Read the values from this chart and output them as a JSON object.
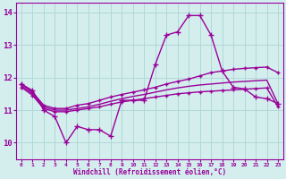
{
  "x": [
    0,
    1,
    2,
    3,
    4,
    5,
    6,
    7,
    8,
    9,
    10,
    11,
    12,
    13,
    14,
    15,
    16,
    17,
    18,
    19,
    20,
    21,
    22,
    23
  ],
  "windchill": [
    11.8,
    11.6,
    11.0,
    10.8,
    10.0,
    10.5,
    10.4,
    10.4,
    10.2,
    11.3,
    11.3,
    11.3,
    12.4,
    13.3,
    13.4,
    13.9,
    13.9,
    13.3,
    12.2,
    11.7,
    11.65,
    11.4,
    11.35,
    11.2
  ],
  "line_upper": [
    11.8,
    11.55,
    11.15,
    11.05,
    11.05,
    11.15,
    11.2,
    11.3,
    11.4,
    11.48,
    11.55,
    11.62,
    11.7,
    11.8,
    11.88,
    11.95,
    12.05,
    12.15,
    12.2,
    12.25,
    12.28,
    12.3,
    12.32,
    12.15
  ],
  "line_mid": [
    11.75,
    11.5,
    11.1,
    11.0,
    11.0,
    11.05,
    11.1,
    11.18,
    11.27,
    11.35,
    11.42,
    11.48,
    11.55,
    11.62,
    11.68,
    11.73,
    11.77,
    11.8,
    11.83,
    11.86,
    11.88,
    11.9,
    11.92,
    11.2
  ],
  "line_lower": [
    11.7,
    11.45,
    11.05,
    10.95,
    10.95,
    11.0,
    11.05,
    11.1,
    11.18,
    11.25,
    11.3,
    11.35,
    11.4,
    11.45,
    11.5,
    11.53,
    11.56,
    11.58,
    11.6,
    11.62,
    11.64,
    11.66,
    11.68,
    11.1
  ],
  "bg_color": "#d4eeee",
  "line_color": "#990099",
  "grid_color": "#b0d8d8",
  "xlabel": "Windchill (Refroidissement éolien,°C)",
  "ylim": [
    9.5,
    14.3
  ],
  "xlim": [
    -0.5,
    23.5
  ],
  "yticks": [
    10,
    11,
    12,
    13,
    14
  ],
  "xticks": [
    0,
    1,
    2,
    3,
    4,
    5,
    6,
    7,
    8,
    9,
    10,
    11,
    12,
    13,
    14,
    15,
    16,
    17,
    18,
    19,
    20,
    21,
    22,
    23
  ],
  "markersize": 4,
  "linewidth": 1.0
}
